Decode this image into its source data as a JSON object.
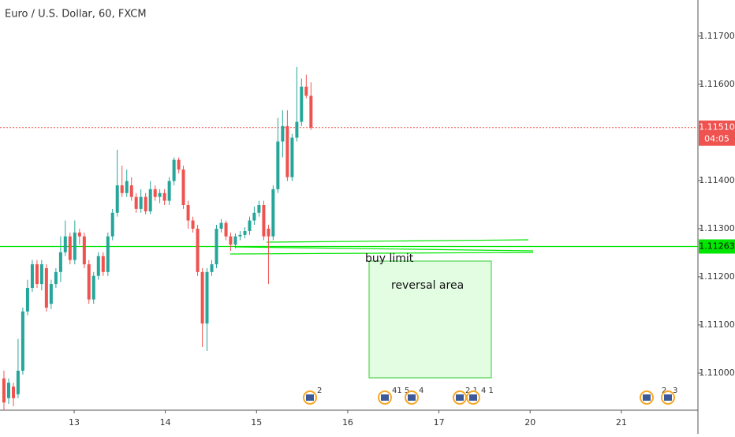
{
  "chart_data": {
    "type": "candlestick",
    "title": "Euro / U.S. Dollar, 60, FXCM",
    "x": [
      12.23,
      12.282,
      12.334,
      12.385,
      12.437,
      12.489,
      12.541,
      12.593,
      12.644,
      12.696,
      12.748,
      12.8,
      12.852,
      12.903,
      12.955,
      13.007,
      13.059,
      13.111,
      13.162,
      13.214,
      13.266,
      13.318,
      13.37,
      13.421,
      13.473,
      13.525,
      13.577,
      13.629,
      13.68,
      13.732,
      13.784,
      13.836,
      13.888,
      13.939,
      13.991,
      14.043,
      14.095,
      14.147,
      14.198,
      14.25,
      14.302,
      14.354,
      14.406,
      14.457,
      14.509,
      14.561,
      14.613,
      14.665,
      14.716,
      14.768,
      14.82,
      14.872,
      14.924,
      14.975,
      15.027,
      15.079,
      15.131,
      15.182,
      15.234,
      15.286,
      15.338,
      15.39,
      15.442,
      15.493,
      15.545,
      15.597
    ],
    "open": [
      1.10989,
      1.10948,
      1.10972,
      1.10956,
      1.11005,
      1.11128,
      1.11177,
      1.11226,
      1.11185,
      1.11218,
      1.11144,
      1.11185,
      1.1121,
      1.11251,
      1.11284,
      1.11235,
      1.11292,
      1.11284,
      1.11226,
      1.11153,
      1.11202,
      1.11243,
      1.1121,
      1.11284,
      1.11333,
      1.1139,
      1.11374,
      1.1139,
      1.11366,
      1.11341,
      1.11366,
      1.11336,
      1.11382,
      1.11366,
      1.11374,
      1.11358,
      1.11399,
      1.11443,
      1.11423,
      1.11349,
      1.11317,
      1.113,
      1.1121,
      1.11103,
      1.1121,
      1.11226,
      1.113,
      1.11312,
      1.11284,
      1.11267,
      1.11284,
      1.11287,
      1.11295,
      1.11317,
      1.11333,
      1.11349,
      1.113,
      1.11284,
      1.11382,
      1.11481,
      1.11513,
      1.11407,
      1.11489,
      1.11522,
      1.11595,
      1.11576
    ],
    "high": [
      1.11005,
      1.10989,
      1.1098,
      1.11071,
      1.11136,
      1.11194,
      1.11235,
      1.11235,
      1.11235,
      1.11226,
      1.11194,
      1.11218,
      1.11284,
      1.11317,
      1.11292,
      1.11317,
      1.113,
      1.11292,
      1.11235,
      1.1121,
      1.11251,
      1.11251,
      1.11292,
      1.11341,
      1.11464,
      1.11431,
      1.11423,
      1.11407,
      1.11374,
      1.11382,
      1.11374,
      1.11399,
      1.1139,
      1.11382,
      1.11382,
      1.11407,
      1.11448,
      1.11448,
      1.11431,
      1.11358,
      1.11325,
      1.11308,
      1.11218,
      1.11218,
      1.11235,
      1.11308,
      1.1132,
      1.11317,
      1.11292,
      1.1129,
      1.11295,
      1.11303,
      1.11325,
      1.11346,
      1.11358,
      1.11358,
      1.11308,
      1.1139,
      1.1153,
      1.11546,
      1.11546,
      1.11497,
      1.11636,
      1.11612,
      1.1162,
      1.11604
    ],
    "low": [
      1.10923,
      1.10936,
      1.10931,
      1.10948,
      1.10997,
      1.1112,
      1.11169,
      1.11177,
      1.11172,
      1.11128,
      1.11133,
      1.11177,
      1.11189,
      1.11243,
      1.11226,
      1.11226,
      1.11267,
      1.11218,
      1.11144,
      1.11144,
      1.11194,
      1.11202,
      1.11202,
      1.11276,
      1.11325,
      1.11366,
      1.11366,
      1.11358,
      1.11333,
      1.11333,
      1.1133,
      1.1133,
      1.11358,
      1.11353,
      1.11349,
      1.11349,
      1.1139,
      1.11415,
      1.11341,
      1.113,
      1.11292,
      1.11202,
      1.11054,
      1.11046,
      1.11202,
      1.11218,
      1.11292,
      1.11276,
      1.11254,
      1.11259,
      1.11276,
      1.1128,
      1.11287,
      1.11308,
      1.11325,
      1.11276,
      1.11185,
      1.11276,
      1.11374,
      1.11448,
      1.11399,
      1.11399,
      1.11481,
      1.11513,
      1.11571,
      1.11505
    ],
    "close": [
      1.10939,
      1.1098,
      1.10948,
      1.11005,
      1.11128,
      1.11177,
      1.11226,
      1.11185,
      1.11226,
      1.11136,
      1.11185,
      1.1121,
      1.11251,
      1.11284,
      1.11235,
      1.11292,
      1.11284,
      1.11226,
      1.11153,
      1.11202,
      1.11243,
      1.1121,
      1.11284,
      1.11333,
      1.1139,
      1.11374,
      1.11399,
      1.11366,
      1.11341,
      1.11366,
      1.11336,
      1.11382,
      1.11366,
      1.11374,
      1.11358,
      1.11399,
      1.11443,
      1.11423,
      1.11349,
      1.11317,
      1.113,
      1.1121,
      1.11103,
      1.1121,
      1.11226,
      1.113,
      1.11312,
      1.11284,
      1.11267,
      1.11284,
      1.11287,
      1.11295,
      1.11317,
      1.11333,
      1.11349,
      1.11284,
      1.11284,
      1.11382,
      1.11481,
      1.11513,
      1.11407,
      1.11489,
      1.11522,
      1.11595,
      1.11576,
      1.1151
    ],
    "up_color": "#26a69a",
    "down_color": "#ef5350",
    "ylim": [
      1.10923,
      1.11775
    ],
    "yticks": [
      {
        "value": 1.11,
        "label": "1.11000"
      },
      {
        "value": 1.111,
        "label": "1.11100"
      },
      {
        "value": 1.112,
        "label": "1.11200"
      },
      {
        "value": 1.113,
        "label": "1.11300"
      },
      {
        "value": 1.114,
        "label": "1.11400"
      },
      {
        "value": 1.116,
        "label": "1.11600"
      },
      {
        "value": 1.117,
        "label": "1.11700"
      }
    ],
    "xlim": [
      12.187,
      19.84
    ],
    "xticks": [
      13,
      14,
      15,
      16,
      17,
      {
        "value": 18,
        "label": "20"
      },
      {
        "value": 19,
        "label": "21"
      }
    ],
    "price_line": {
      "value": 1.1151,
      "label": "1.11510",
      "countdown": "04:05",
      "color": "#ef5350"
    },
    "level_line": {
      "value": 1.11263,
      "label": "1.11263",
      "color": "#00e600"
    },
    "annotations": [
      "buy limit",
      "reversal area"
    ],
    "events": [
      "2",
      "41 5",
      "4",
      "2 1",
      "4 1",
      "2",
      "3"
    ]
  }
}
